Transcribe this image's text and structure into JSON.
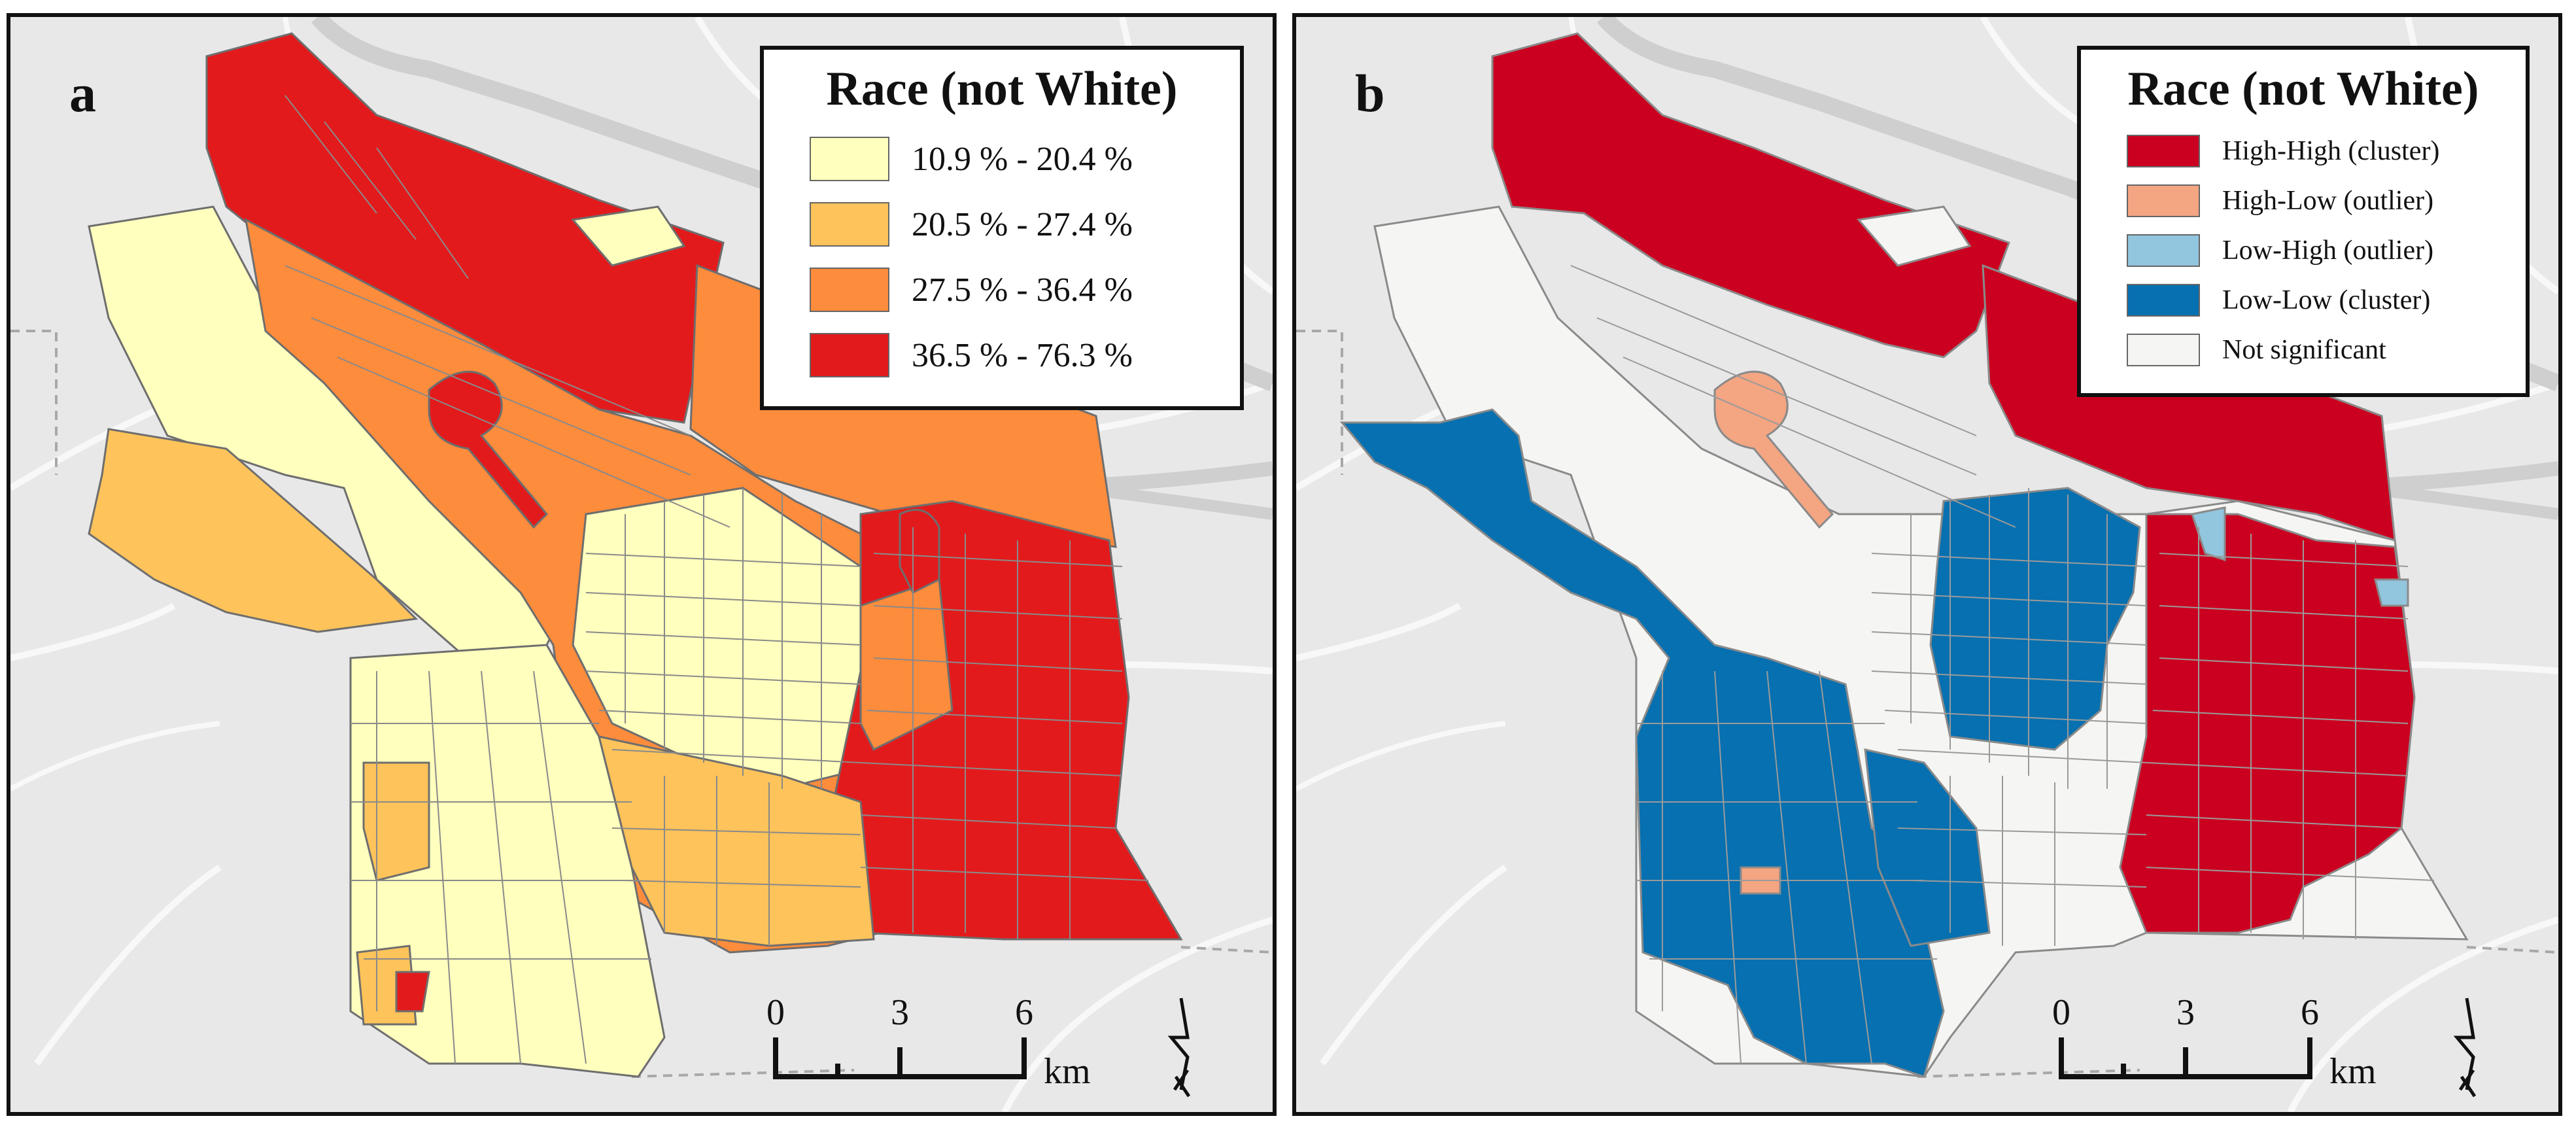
{
  "colors": {
    "background": "#e8e8e8",
    "road": "#fafafa",
    "river": "#c9c9c9",
    "boundary": "#6e6e6e",
    "tract_line": "#7a7a7a"
  },
  "panels": [
    {
      "letter": "a",
      "legend": {
        "title": "Race (not White)",
        "items": [
          {
            "label": "10.9 % - 20.4 %",
            "color": "#ffffbe"
          },
          {
            "label": "20.5 % - 27.4 %",
            "color": "#fec35a"
          },
          {
            "label": "27.5 % - 36.4 %",
            "color": "#fd8c3c"
          },
          {
            "label": "36.5 % - 76.3 %",
            "color": "#e31a1c"
          }
        ]
      },
      "scalebar": {
        "ticks": [
          "0",
          "3",
          "6"
        ],
        "unit": "km"
      }
    },
    {
      "letter": "b",
      "legend": {
        "title": "Race (not White)",
        "items": [
          {
            "label": "High-High (cluster)",
            "color": "#cb0020"
          },
          {
            "label": "High-Low (outlier)",
            "color": "#f4a582"
          },
          {
            "label": "Low-High (outlier)",
            "color": "#92c5de"
          },
          {
            "label": "Low-Low (cluster)",
            "color": "#0670b0"
          },
          {
            "label": "Not significant",
            "color": "#f5f5f3"
          }
        ]
      },
      "scalebar": {
        "ticks": [
          "0",
          "3",
          "6"
        ],
        "unit": "km"
      }
    }
  ]
}
